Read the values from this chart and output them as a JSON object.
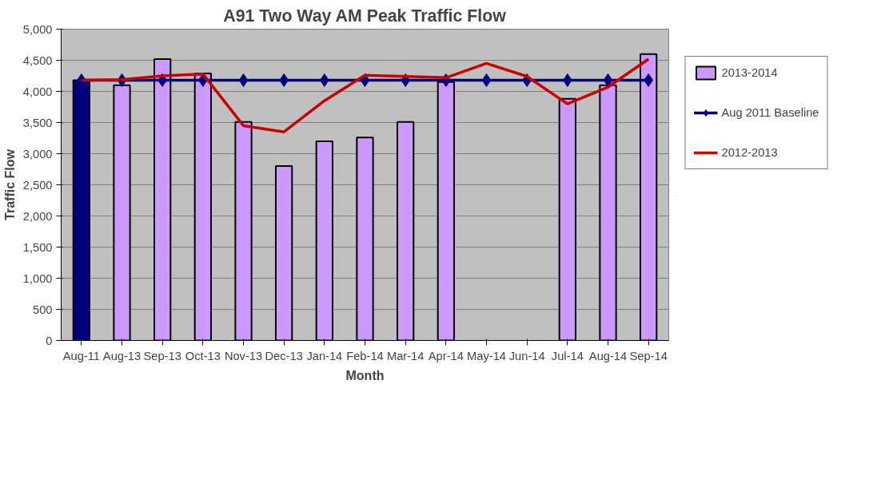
{
  "chart_data": {
    "type": "bar",
    "title": "A91 Two Way AM Peak Traffic Flow",
    "xlabel": "Month",
    "ylabel": "Traffic Flow",
    "categories": [
      "Aug-11",
      "Aug-13",
      "Sep-13",
      "Oct-13",
      "Nov-13",
      "Dec-13",
      "Jan-14",
      "Feb-14",
      "Mar-14",
      "Apr-14",
      "May-14",
      "Jun-14",
      "Jul-14",
      "Aug-14",
      "Sep-14"
    ],
    "series": [
      {
        "name": "2013-2014",
        "color": "#cc99ff",
        "colors": [
          "#000080",
          "#cc99ff",
          "#cc99ff",
          "#cc99ff",
          "#cc99ff",
          "#cc99ff",
          "#cc99ff",
          "#cc99ff",
          "#cc99ff",
          "#cc99ff",
          "#cc99ff",
          "#cc99ff",
          "#cc99ff",
          "#cc99ff",
          "#cc99ff"
        ],
        "values": [
          4180,
          4100,
          4520,
          4290,
          3510,
          2800,
          3200,
          3260,
          3510,
          4150,
          null,
          null,
          3880,
          4100,
          4600
        ]
      },
      {
        "name": "Aug 2011 Baseline",
        "type": "line",
        "color": "#000080",
        "marker": "diamond",
        "values": [
          4180,
          4180,
          4180,
          4180,
          4180,
          4180,
          4180,
          4180,
          4180,
          4180,
          4180,
          4180,
          4180,
          4180,
          4180
        ]
      },
      {
        "name": "2012-2013",
        "type": "line",
        "color": "#cc0000",
        "marker": "none",
        "values": [
          4180,
          4190,
          4250,
          4280,
          3450,
          3350,
          3850,
          4260,
          4240,
          4220,
          4450,
          4240,
          3800,
          4070,
          4520
        ]
      }
    ],
    "ylim": [
      0,
      5000
    ],
    "yticks": [
      {
        "value": 0,
        "label": "0"
      },
      {
        "value": 500,
        "label": "500"
      },
      {
        "value": 1000,
        "label": "1,000"
      },
      {
        "value": 1500,
        "label": "1,500"
      },
      {
        "value": 2000,
        "label": "2,000"
      },
      {
        "value": 2500,
        "label": "2,500"
      },
      {
        "value": 3000,
        "label": "3,000"
      },
      {
        "value": 3500,
        "label": "3,500"
      },
      {
        "value": 4000,
        "label": "4,000"
      },
      {
        "value": 4500,
        "label": "4,500"
      },
      {
        "value": 5000,
        "label": "5,000"
      }
    ],
    "grid": "y",
    "legend": "right"
  }
}
